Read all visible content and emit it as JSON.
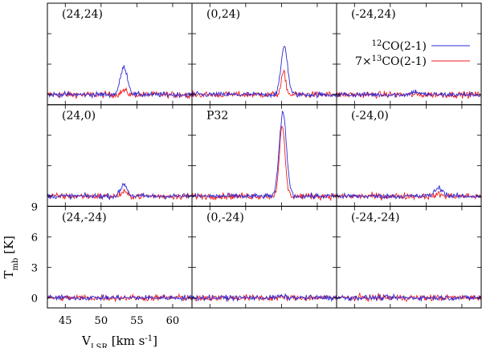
{
  "chart_data": {
    "type": "line",
    "layout": "3x3 grid of spectra",
    "xlabel_main": "V",
    "xlabel_sub": "LSR",
    "xlabel_unit": " [km s",
    "xlabel_sup": "-1",
    "xlabel_end": "]",
    "ylabel_main": "T",
    "ylabel_sub": "mb",
    "ylabel_unit": " [K]",
    "xlim": [
      42.5,
      62.7
    ],
    "ylim": [
      -1,
      9
    ],
    "x_ticks": [
      45,
      50,
      55,
      60
    ],
    "x_tick_labels": [
      "45",
      "50",
      "55",
      "60"
    ],
    "y_ticks": [
      0,
      3,
      6,
      9
    ],
    "y_tick_labels": [
      "0",
      "3",
      "6",
      "9"
    ],
    "grid": false,
    "legend_position": "top-right of upper-right panel",
    "colors": {
      "co12": "#2b2bd9",
      "co13": "#ef1f1f"
    },
    "series": [
      {
        "name": "CO(2-1)",
        "sup": "12",
        "prefix": "",
        "color": "#2b2bd9"
      },
      {
        "name": "CO(2-1)",
        "sup": "13",
        "prefix": "7×",
        "color": "#ef1f1f"
      }
    ],
    "panels": [
      {
        "label": "(24,24)",
        "co12": {
          "peak": 2.7,
          "center": 53.2,
          "width": 0.5
        },
        "co13": {
          "peak": 0.4,
          "center": 53.2,
          "width": 0.4
        }
      },
      {
        "label": "(0,24)",
        "co12": {
          "peak": 4.8,
          "center": 55.4,
          "width": 0.45
        },
        "co13": {
          "peak": 2.2,
          "center": 55.3,
          "width": 0.3
        }
      },
      {
        "label": "(-24,24)",
        "co12": {
          "peak": 0.3,
          "center": 53.5,
          "width": 0.5
        },
        "co13": {
          "peak": 0.0,
          "center": 53.5,
          "width": 0.4
        }
      },
      {
        "label": "(24,0)",
        "co12": {
          "peak": 1.2,
          "center": 53.2,
          "width": 0.45
        },
        "co13": {
          "peak": 0.4,
          "center": 53.2,
          "width": 0.4
        }
      },
      {
        "label": "P32",
        "co12": {
          "peak": 8.2,
          "center": 55.2,
          "width": 0.5
        },
        "co13": {
          "peak": 6.8,
          "center": 55.1,
          "width": 0.4
        }
      },
      {
        "label": "(-24,0)",
        "co12": {
          "peak": 0.8,
          "center": 56.8,
          "width": 0.6
        },
        "co13": {
          "peak": 0.2,
          "center": 56.8,
          "width": 0.4
        }
      },
      {
        "label": "(24,-24)",
        "co12": {
          "peak": 0.0,
          "center": 53.0,
          "width": 0.5
        },
        "co13": {
          "peak": 0.0,
          "center": 53.0,
          "width": 0.4
        }
      },
      {
        "label": "(0,-24)",
        "co12": {
          "peak": 0.15,
          "center": 55.0,
          "width": 0.5
        },
        "co13": {
          "peak": 0.0,
          "center": 55.0,
          "width": 0.4
        }
      },
      {
        "label": "(-24,-24)",
        "co12": {
          "peak": 0.0,
          "center": 55.0,
          "width": 0.5
        },
        "co13": {
          "peak": 0.0,
          "center": 55.0,
          "width": 0.4
        }
      }
    ]
  }
}
